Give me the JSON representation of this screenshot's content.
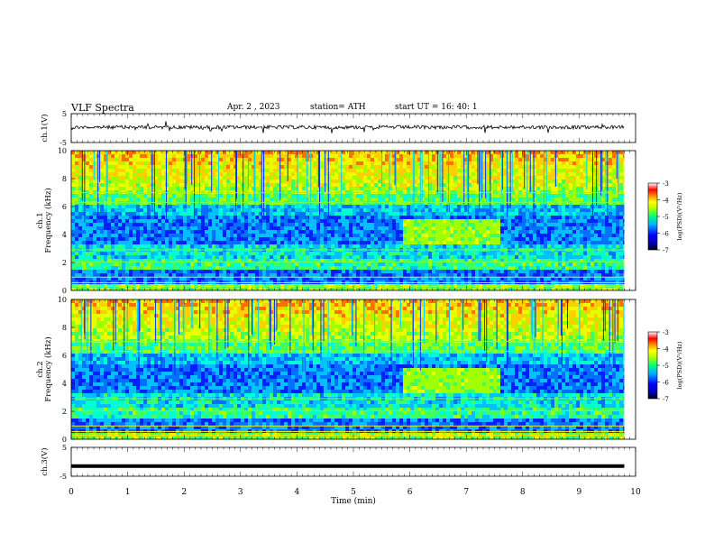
{
  "header": {
    "title": "VLF  Spectra",
    "date": "Apr. 2  , 2023",
    "station": "station= ATH",
    "start": "start  UT  =    16: 40: 1"
  },
  "chart_data": {
    "type": "heatmap",
    "xlabel": "Time  (min)",
    "xlim": [
      0,
      10
    ],
    "xticks": [
      "0",
      "1",
      "2",
      "3",
      "4",
      "5",
      "6",
      "7",
      "8",
      "9",
      "10"
    ],
    "panels": [
      {
        "ylabel": "ch.1(V)",
        "kind": "waveform",
        "ylim": [
          -5,
          5
        ],
        "yticks": [
          "5",
          "-5"
        ],
        "baseline": 0.3
      },
      {
        "ylabel": "ch.1\nFrequency  (kHz)",
        "kind": "spectrogram",
        "ylim": [
          0,
          10
        ],
        "yticks": [
          "0",
          "2",
          "4",
          "6",
          "8",
          "10"
        ],
        "colorbar": {
          "label": "log(PSD)(V²/Hz)",
          "range": [
            -7,
            -3
          ],
          "ticks": [
            "-3",
            "-4",
            "-5",
            "-6",
            "-7"
          ]
        }
      },
      {
        "ylabel": "ch.2\nFrequency  (kHz)",
        "kind": "spectrogram",
        "ylim": [
          0,
          10
        ],
        "yticks": [
          "0",
          "2",
          "4",
          "6",
          "8",
          "10"
        ],
        "colorbar": {
          "label": "log(PSD)(V²/Hz)",
          "range": [
            -7,
            -3
          ],
          "ticks": [
            "-3",
            "-4",
            "-5",
            "-6",
            "-7"
          ]
        }
      },
      {
        "ylabel": "ch.3(V)",
        "kind": "waveform",
        "ylim": [
          -5,
          5
        ],
        "yticks": [
          "5",
          "-5"
        ],
        "baseline": -1.5
      }
    ],
    "data_extent_min": 9.8,
    "event_window_min": [
      5.82,
      7.6
    ]
  },
  "colors": {
    "scale": [
      "#000070",
      "#0000ff",
      "#00a0ff",
      "#00ffaa",
      "#aaff00",
      "#ffff00",
      "#ff8000",
      "#ff0000",
      "#ffffff"
    ]
  }
}
